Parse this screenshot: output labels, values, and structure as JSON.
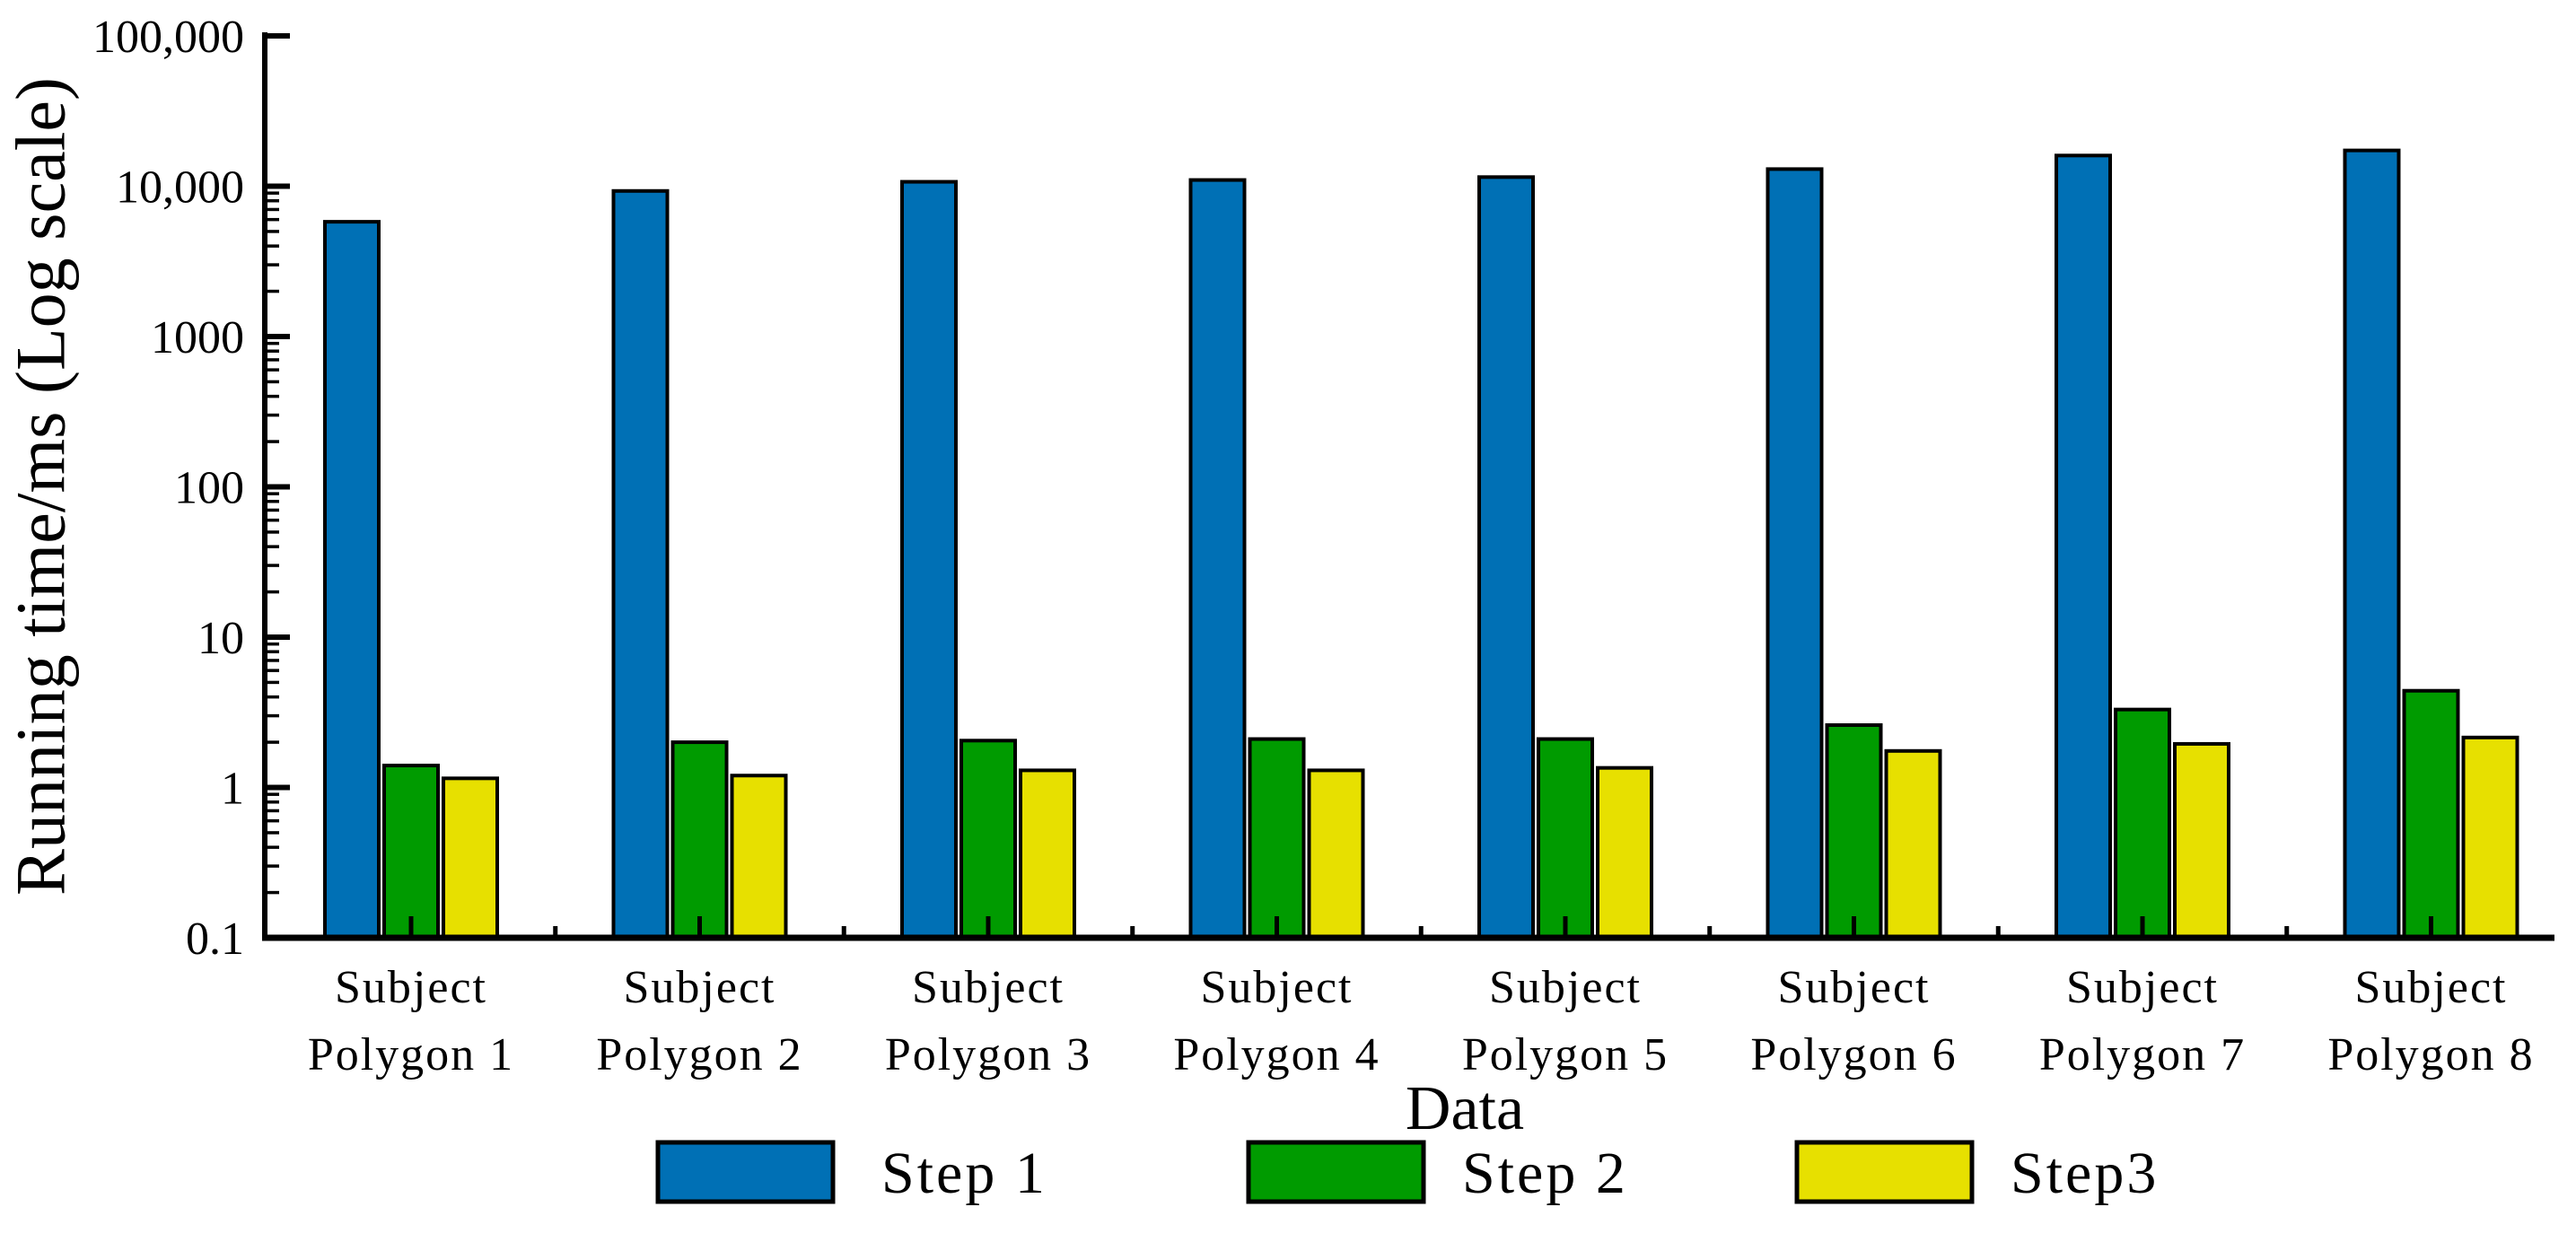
{
  "chart_data": {
    "type": "bar",
    "title": "",
    "xlabel": "Data",
    "ylabel": "Running time/ms (Log scale)",
    "y_scale": "log",
    "ylim": [
      0.1,
      100000
    ],
    "grid": false,
    "legend_position": "bottom",
    "ytick_labels": [
      "100,000",
      "10,000",
      "1000",
      "100",
      "10",
      "1",
      "0.1"
    ],
    "ytick_values": [
      100000,
      10000,
      1000,
      100,
      10,
      1,
      0.1
    ],
    "categories": [
      "Subject Polygon 1",
      "Subject Polygon 2",
      "Subject Polygon 3",
      "Subject Polygon 4",
      "Subject Polygon 5",
      "Subject Polygon 6",
      "Subject Polygon 7",
      "Subject Polygon 8"
    ],
    "series": [
      {
        "name": "Step 1",
        "color": "#0070b5",
        "values": [
          5800,
          9300,
          10700,
          11000,
          11500,
          13000,
          16000,
          17300
        ]
      },
      {
        "name": "Step 2",
        "color": "#009b00",
        "values": [
          1.4,
          2.0,
          2.05,
          2.1,
          2.1,
          2.6,
          3.3,
          4.4
        ]
      },
      {
        "name": "Step3",
        "color": "#e7e000",
        "values": [
          1.15,
          1.2,
          1.3,
          1.3,
          1.35,
          1.75,
          1.95,
          2.15
        ]
      }
    ],
    "axis_color": "#000000",
    "bar_border_color": "#000000",
    "background_color": "#ffffff"
  }
}
